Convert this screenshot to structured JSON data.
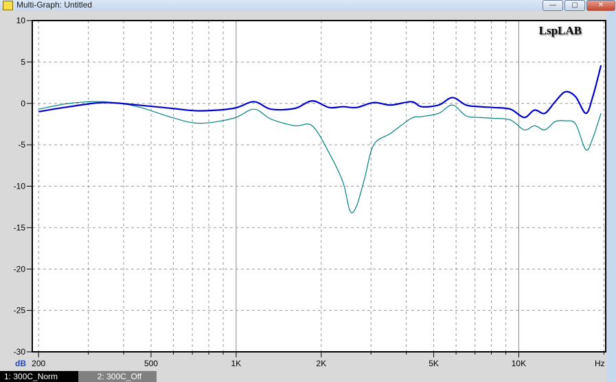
{
  "window": {
    "title": "Multi-Graph: Untitled",
    "buttons": {
      "minimize": "—",
      "maximize": "▢",
      "close": "✕"
    }
  },
  "logo": "LspLAB",
  "chart_data": {
    "type": "line",
    "xscale": "log",
    "xlim": [
      190,
      20300
    ],
    "ylim": [
      -30,
      10
    ],
    "xlabel": "Hz",
    "ylabel": "dB",
    "grid": true,
    "y_ticks": [
      "10",
      "5",
      "0",
      "-5",
      "-10",
      "-15",
      "-20",
      "-25",
      "-30"
    ],
    "x_ticks": [
      {
        "v": 200,
        "label": "200"
      },
      {
        "v": 500,
        "label": "500"
      },
      {
        "v": 1000,
        "label": "1K"
      },
      {
        "v": 2000,
        "label": "2K"
      },
      {
        "v": 5000,
        "label": "5K"
      },
      {
        "v": 10000,
        "label": "10K"
      }
    ],
    "series": [
      {
        "name": "1: 300C_Norm",
        "color": "#0000cc",
        "x": [
          200,
          257,
          339,
          448,
          592,
          740,
          978,
          1156,
          1329,
          1615,
          1857,
          2134,
          2387,
          2667,
          3068,
          3525,
          4166,
          4529,
          5208,
          5823,
          6509,
          7278,
          8134,
          9350,
          10450,
          11370,
          12360,
          13440,
          14620,
          15890,
          17270,
          18270,
          19540
        ],
        "y": [
          -1.0,
          -0.4,
          0.1,
          -0.2,
          -0.6,
          -0.9,
          -0.6,
          0.2,
          -0.7,
          -0.6,
          0.3,
          -0.5,
          -0.4,
          -0.5,
          0.1,
          -0.2,
          0.2,
          -0.4,
          -0.2,
          0.7,
          -0.2,
          -0.4,
          -0.5,
          -0.7,
          -1.7,
          -0.8,
          -1.2,
          0.2,
          1.4,
          0.8,
          -1.2,
          0.8,
          4.6
        ]
      },
      {
        "name": "2: 300C_Off",
        "color": "#008080",
        "x": [
          200,
          257,
          339,
          448,
          592,
          740,
          978,
          1156,
          1329,
          1615,
          1857,
          2134,
          2387,
          2530,
          2667,
          2850,
          3068,
          3525,
          4166,
          4529,
          5208,
          5823,
          6509,
          7278,
          8134,
          9350,
          10450,
          11370,
          12360,
          13440,
          14620,
          15890,
          17270,
          18270,
          19540
        ],
        "y": [
          -0.7,
          0,
          0.2,
          -0.4,
          -1.7,
          -2.4,
          -1.8,
          -0.7,
          -1.9,
          -2.7,
          -2.7,
          -6,
          -9.5,
          -13,
          -12.4,
          -9,
          -5,
          -3.6,
          -1.8,
          -1.6,
          -1.2,
          -0.2,
          -1.5,
          -1.7,
          -1.8,
          -2.0,
          -3.2,
          -2.7,
          -3.2,
          -2.2,
          -2.1,
          -2.5,
          -5.6,
          -4.2,
          -1.2
        ]
      }
    ]
  }
}
